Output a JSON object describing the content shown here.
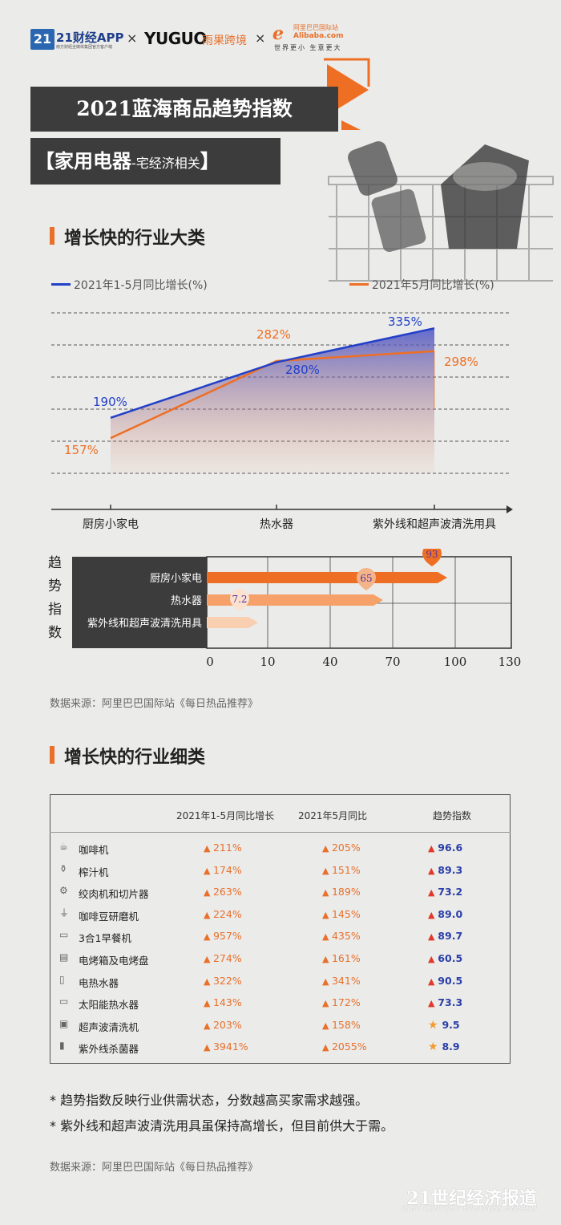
{
  "header": {
    "logo_21": "21",
    "app_name": "21财经APP",
    "app_sub": "南方财经全媒体集团官方客户端",
    "sep": "×",
    "yuguo": "YUGUO",
    "yuguo_cn": "雨果跨境",
    "ali_name_cn": "阿里巴巴国际站",
    "ali_name_en": "Alibaba.com",
    "ali_slogan": "世界更小 生意更大"
  },
  "title": "2021蓝海商品趋势指数",
  "subtitle_main": "【家用电器",
  "subtitle_small": "-宅经济相关",
  "subtitle_end": "】",
  "section1": {
    "title": "增长快的行业大类"
  },
  "section2": {
    "title": "增长快的行业细类"
  },
  "colors": {
    "blue": "#2240c8",
    "orange": "#ee6f23",
    "accent": "#e8702a",
    "dark": "#3c3c3c"
  },
  "chart_data": [
    {
      "type": "line",
      "categories": [
        "厨房小家电",
        "热水器",
        "紫外线和超声波清洗用具"
      ],
      "series": [
        {
          "name": "2021年1-5月同比增长(%)",
          "values": [
            190,
            280,
            335
          ],
          "labels": [
            "190%",
            "280%",
            "335%"
          ],
          "color": "#2240c8"
        },
        {
          "name": "2021年5月同比增长(%)",
          "values": [
            157,
            282,
            298
          ],
          "labels": [
            "157%",
            "282%",
            "298%"
          ],
          "color": "#ee6f23"
        }
      ],
      "ylim": [
        100,
        360
      ],
      "grid": true,
      "legend": "top"
    },
    {
      "type": "bar",
      "orientation": "horizontal",
      "ylabel": "趋势指数",
      "categories": [
        "厨房小家电",
        "热水器",
        "紫外线和超声波清洗用具"
      ],
      "values": [
        93,
        65,
        7.2
      ],
      "labels": [
        "93",
        "65",
        "7.2"
      ],
      "xticks": [
        "0",
        "10",
        "40",
        "70",
        "100",
        "130"
      ],
      "xlim": [
        0,
        130
      ]
    },
    {
      "type": "table",
      "columns": [
        "2021年1-5月同比增长",
        "2021年5月同比",
        "趋势指数"
      ],
      "rows": [
        {
          "icon": "coffee-machine-icon",
          "name": "咖啡机",
          "v1": "211%",
          "v2": "205%",
          "idx": "96.6",
          "mark": "flame"
        },
        {
          "icon": "juicer-icon",
          "name": "榨汁机",
          "v1": "174%",
          "v2": "151%",
          "idx": "89.3",
          "mark": "flame"
        },
        {
          "icon": "meat-grinder-icon",
          "name": "绞肉机和切片器",
          "v1": "263%",
          "v2": "189%",
          "idx": "73.2",
          "mark": "flame"
        },
        {
          "icon": "coffee-grinder-icon",
          "name": "咖啡豆研磨机",
          "v1": "224%",
          "v2": "145%",
          "idx": "89.0",
          "mark": "flame"
        },
        {
          "icon": "breakfast-maker-icon",
          "name": "3合1早餐机",
          "v1": "957%",
          "v2": "435%",
          "idx": "89.7",
          "mark": "flame"
        },
        {
          "icon": "oven-icon",
          "name": "电烤箱及电烤盘",
          "v1": "274%",
          "v2": "161%",
          "idx": "60.5",
          "mark": "flame"
        },
        {
          "icon": "water-heater-icon",
          "name": "电热水器",
          "v1": "322%",
          "v2": "341%",
          "idx": "90.5",
          "mark": "flame"
        },
        {
          "icon": "solar-heater-icon",
          "name": "太阳能热水器",
          "v1": "143%",
          "v2": "172%",
          "idx": "73.3",
          "mark": "flame"
        },
        {
          "icon": "ultrasonic-cleaner-icon",
          "name": "超声波清洗机",
          "v1": "203%",
          "v2": "158%",
          "idx": "9.5",
          "mark": "star"
        },
        {
          "icon": "uv-sterilizer-icon",
          "name": "紫外线杀菌器",
          "v1": "3941%",
          "v2": "2055%",
          "idx": "8.9",
          "mark": "star"
        }
      ]
    }
  ],
  "symbols": {
    "up": "▲",
    "flame": "🔥",
    "star": "★"
  },
  "source1": "数据来源：阿里巴巴国际站《每日热品推荐》",
  "source2": "数据来源：阿里巴巴国际站《每日热品推荐》",
  "notes": [
    "* 趋势指数反映行业供需状态，分数越高买家需求越强。",
    "* 紫外线和超声波清洗用具虽保持高增长，但目前供大于需。"
  ],
  "footer": {
    "brand": "21世纪经济报道",
    "sub": "21ST CENTURY BUSINESS HERALD"
  }
}
